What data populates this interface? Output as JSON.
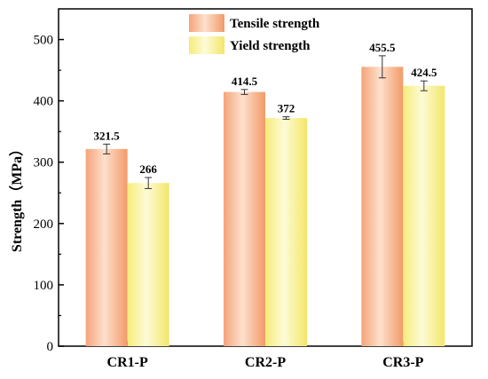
{
  "chart_data": {
    "type": "bar",
    "categories": [
      "CR1-P",
      "CR2-P",
      "CR3-P"
    ],
    "series": [
      {
        "name": "Tensile strength",
        "values": [
          321.5,
          414.5,
          455.5
        ],
        "errors": [
          8,
          4,
          18
        ],
        "labels": [
          "321.5",
          "414.5",
          "455.5"
        ],
        "color": "#f5a878"
      },
      {
        "name": "Yield strength",
        "values": [
          266,
          372,
          424.5
        ],
        "errors": [
          9,
          2,
          8
        ],
        "labels": [
          "266",
          "372",
          "424.5"
        ],
        "color": "#f7f08a"
      }
    ],
    "ylabel": "Strength（MPa）",
    "xlabel": "",
    "ylim": [
      0,
      550
    ],
    "yticks": [
      0,
      100,
      200,
      300,
      400,
      500
    ],
    "grid": false,
    "legend_position": "top-center"
  }
}
